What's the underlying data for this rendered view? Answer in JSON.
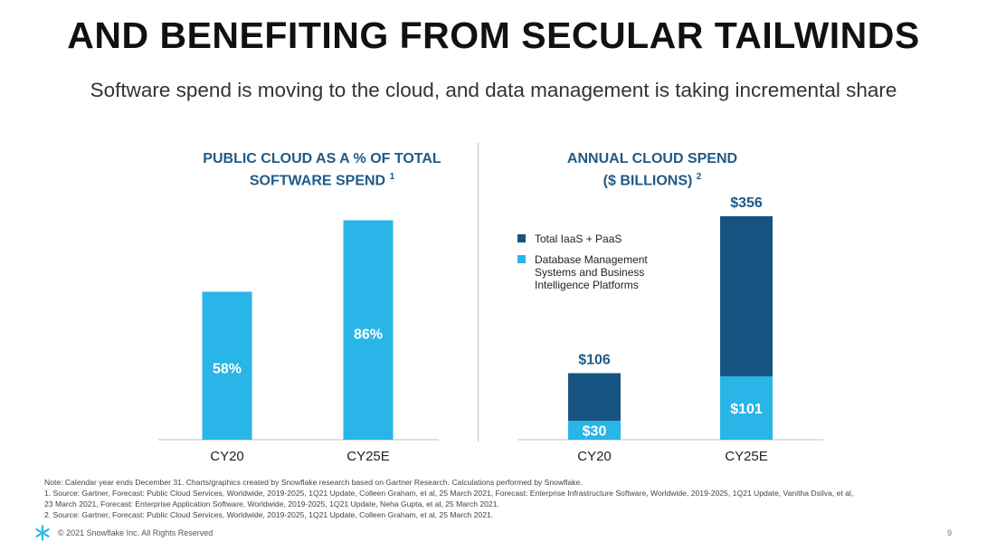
{
  "title": "AND BENEFITING FROM SECULAR TAILWINDS",
  "subtitle": "Software spend is moving to the cloud, and data management is taking incremental share",
  "colors": {
    "dark": "#155480",
    "light": "#29b5e8",
    "title_blue": "#1f5a87"
  },
  "chart_data": [
    {
      "type": "bar",
      "title": "PUBLIC CLOUD AS A % OF TOTAL SOFTWARE SPEND",
      "title_line1": "PUBLIC CLOUD AS A % OF TOTAL",
      "title_line2": "SOFTWARE SPEND",
      "footnote_ref": "1",
      "categories": [
        "CY20",
        "CY25E"
      ],
      "values": [
        58,
        86
      ],
      "data_labels": [
        "58%",
        "86%"
      ],
      "unit": "%",
      "ylim": [
        0,
        100
      ],
      "color": "#29b5e8"
    },
    {
      "type": "bar",
      "stacked": true,
      "title": "ANNUAL CLOUD SPEND ($ BILLIONS)",
      "title_line1": "ANNUAL CLOUD SPEND",
      "title_line2": "($ BILLIONS)",
      "footnote_ref": "2",
      "categories": [
        "CY20",
        "CY25E"
      ],
      "totals": [
        106,
        356
      ],
      "total_labels": [
        "$106",
        "$356"
      ],
      "series": [
        {
          "name": "Database Management Systems and Business Intelligence Platforms",
          "values": [
            30,
            101
          ],
          "labels": [
            "$30",
            "$101"
          ],
          "color": "#29b5e8"
        },
        {
          "name": "Total IaaS + PaaS",
          "values": [
            76,
            255
          ],
          "labels": [
            "",
            ""
          ],
          "color": "#155480"
        }
      ],
      "legend": [
        {
          "label": "Total IaaS + PaaS",
          "color": "#155480"
        },
        {
          "label": "Database Management Systems and Business Intelligence Platforms",
          "color": "#29b5e8"
        }
      ],
      "legend_position": "top-left",
      "ylim": [
        0,
        356
      ]
    }
  ],
  "notes": {
    "intro": "Note: Calendar year ends December 31. Charts/graphics created by Snowflake research based on Gartner Research. Calculations performed by Snowflake.",
    "n1_a": "1.    Source: Gartner, Forecast: Public Cloud Services, Worldwide, 2019-2025, 1Q21 Update, Colleen Graham, et al, 25 March 2021, Forecast: Enterprise Infrastructure Software, Worldwide, 2019-2025, 1Q21 Update, Vanitha Dsilva, et al,",
    "n1_b": "      23 March 2021, Forecast: Enterprise Application Software, Worldwide, 2019-2025, 1Q21 Update, Neha Gupta, et al, 25 March 2021.",
    "n2": "2.    Source: Gartner, Forecast: Public Cloud Services, Worldwide, 2019-2025, 1Q21 Update, Colleen Graham, et al,  25 March 2021."
  },
  "footer": {
    "copyright": "© 2021 Snowflake Inc. All Rights Reserved",
    "page_number": "9"
  }
}
